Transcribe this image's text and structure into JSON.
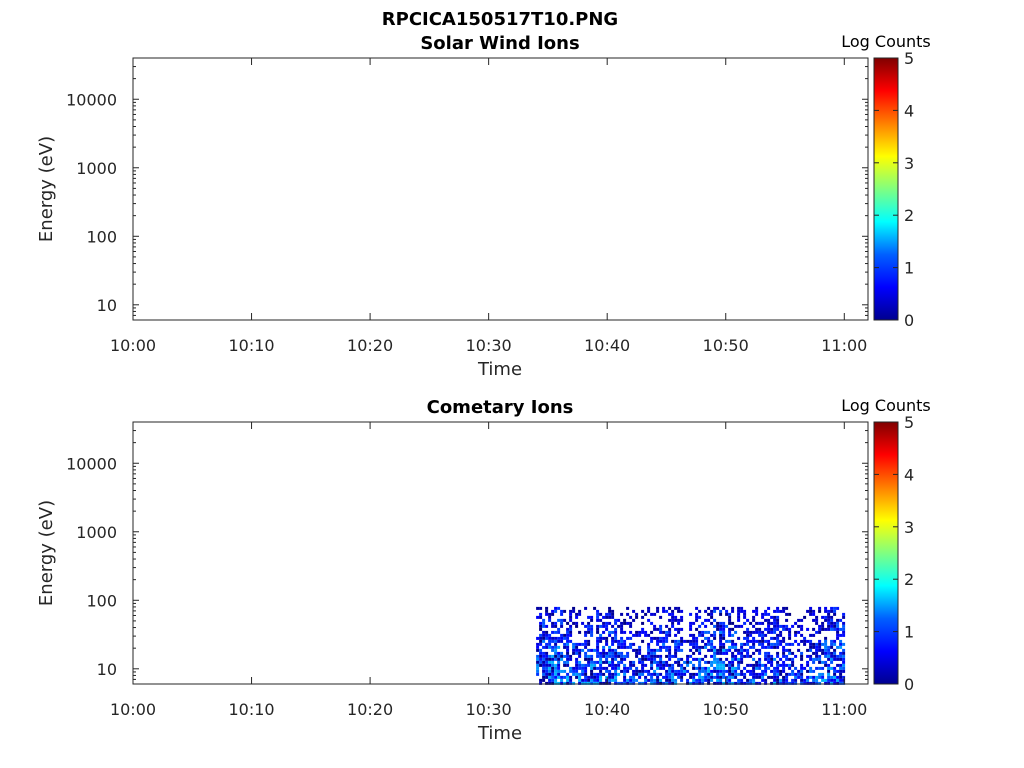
{
  "figure": {
    "title": "RPCICA150517T10.PNG"
  },
  "colors": {
    "axis": "#262626",
    "colormap": [
      "#00008f",
      "#0000ff",
      "#0080ff",
      "#00ffff",
      "#80ff80",
      "#ffff00",
      "#ff8000",
      "#ff0000",
      "#800000"
    ]
  },
  "chart_data": [
    {
      "type": "heatmap",
      "title": "Solar Wind Ions",
      "xlabel": "Time",
      "ylabel": "Energy (eV)",
      "x_ticks": [
        "10:00",
        "10:10",
        "10:20",
        "10:30",
        "10:40",
        "10:50",
        "11:00"
      ],
      "x_range_minutes": [
        0,
        62
      ],
      "y_scale": "log",
      "y_range": [
        6,
        40000
      ],
      "y_ticks": [
        10,
        100,
        1000,
        10000
      ],
      "y_tick_labels": [
        "10",
        "100",
        "1000",
        "10000"
      ],
      "colorbar": {
        "label": "Log Counts",
        "range": [
          0,
          5
        ],
        "ticks": [
          "0",
          "1",
          "2",
          "3",
          "4",
          "5"
        ]
      },
      "data": []
    },
    {
      "type": "heatmap",
      "title": "Cometary Ions",
      "xlabel": "Time",
      "ylabel": "Energy (eV)",
      "x_ticks": [
        "10:00",
        "10:10",
        "10:20",
        "10:30",
        "10:40",
        "10:50",
        "11:00"
      ],
      "x_range_minutes": [
        0,
        62
      ],
      "y_scale": "log",
      "y_range": [
        6,
        40000
      ],
      "y_ticks": [
        10,
        100,
        1000,
        10000
      ],
      "y_tick_labels": [
        "10",
        "100",
        "1000",
        "10000"
      ],
      "colorbar": {
        "label": "Log Counts",
        "range": [
          0,
          5
        ],
        "ticks": [
          "0",
          "1",
          "2",
          "3",
          "4",
          "5"
        ]
      },
      "data_region": {
        "x_start": "10:34",
        "x_end": "11:00",
        "energy_min": 6,
        "energy_max": 80
      },
      "value_range_in_region": [
        0,
        1.5
      ]
    }
  ]
}
